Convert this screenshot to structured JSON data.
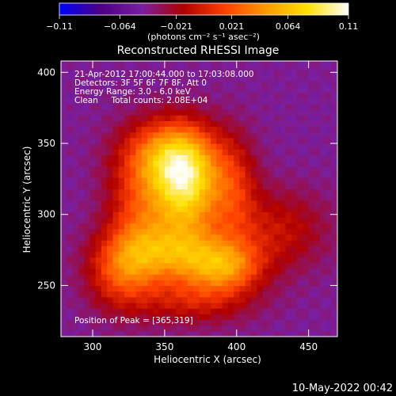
{
  "chart_data": {
    "type": "heatmap",
    "title": "Reconstructed RHESSI Image",
    "xlabel": "Heliocentric X (arcsec)",
    "ylabel": "Heliocentric Y (arcsec)",
    "xlim": [
      278,
      470
    ],
    "ylim": [
      214,
      408
    ],
    "x_ticks": [
      "300",
      "350",
      "400",
      "450"
    ],
    "x_tick_values": [
      300,
      350,
      400,
      450
    ],
    "y_ticks": [
      "250",
      "300",
      "350",
      "400"
    ],
    "y_tick_values": [
      250,
      300,
      350,
      400
    ],
    "colorbar": {
      "ticks": [
        "−0.11",
        "−0.064",
        "−0.021",
        "0.021",
        "0.064",
        "0.11"
      ],
      "tick_values": [
        -0.11,
        -0.064,
        -0.021,
        0.021,
        0.064,
        0.11
      ],
      "range": [
        -0.11,
        0.11
      ],
      "unit_label": "(photons cm⁻² s⁻¹ asec⁻²)",
      "colormap": [
        "#0000ff",
        "#4b0082",
        "#7a1fa0",
        "#b00000",
        "#ff4000",
        "#ff9a00",
        "#ffe000",
        "#ffffff"
      ]
    },
    "annotations": [
      "21-Apr-2012 17:00:44.000 to 17:03:08.000",
      "Detectors: 3F 5F 6F 7F 8F, Att 0",
      "Energy Range: 3.0 - 6.0 keV",
      "Clean     Total counts: 2.08E+04"
    ],
    "peak_label": "Position of Peak = [365,319]",
    "peak": [
      365,
      319
    ],
    "sources": [
      {
        "x": 365,
        "y": 318,
        "sx": 16,
        "sy": 26,
        "amp": 0.11
      },
      {
        "x": 352,
        "y": 342,
        "sx": 22,
        "sy": 18,
        "amp": 0.075
      },
      {
        "x": 360,
        "y": 272,
        "sx": 30,
        "sy": 14,
        "amp": 0.07
      },
      {
        "x": 332,
        "y": 296,
        "sx": 16,
        "sy": 30,
        "amp": 0.055
      },
      {
        "x": 392,
        "y": 262,
        "sx": 18,
        "sy": 12,
        "amp": 0.06
      },
      {
        "x": 398,
        "y": 318,
        "sx": 12,
        "sy": 26,
        "amp": 0.045
      },
      {
        "x": 430,
        "y": 290,
        "sx": 24,
        "sy": 20,
        "amp": 0.035
      },
      {
        "x": 372,
        "y": 240,
        "sx": 28,
        "sy": 12,
        "amp": 0.04
      },
      {
        "x": 318,
        "y": 258,
        "sx": 16,
        "sy": 18,
        "amp": 0.045
      }
    ],
    "background_level": -0.045
  },
  "footer": {
    "date_stamp": "10-May-2022 00:42"
  }
}
